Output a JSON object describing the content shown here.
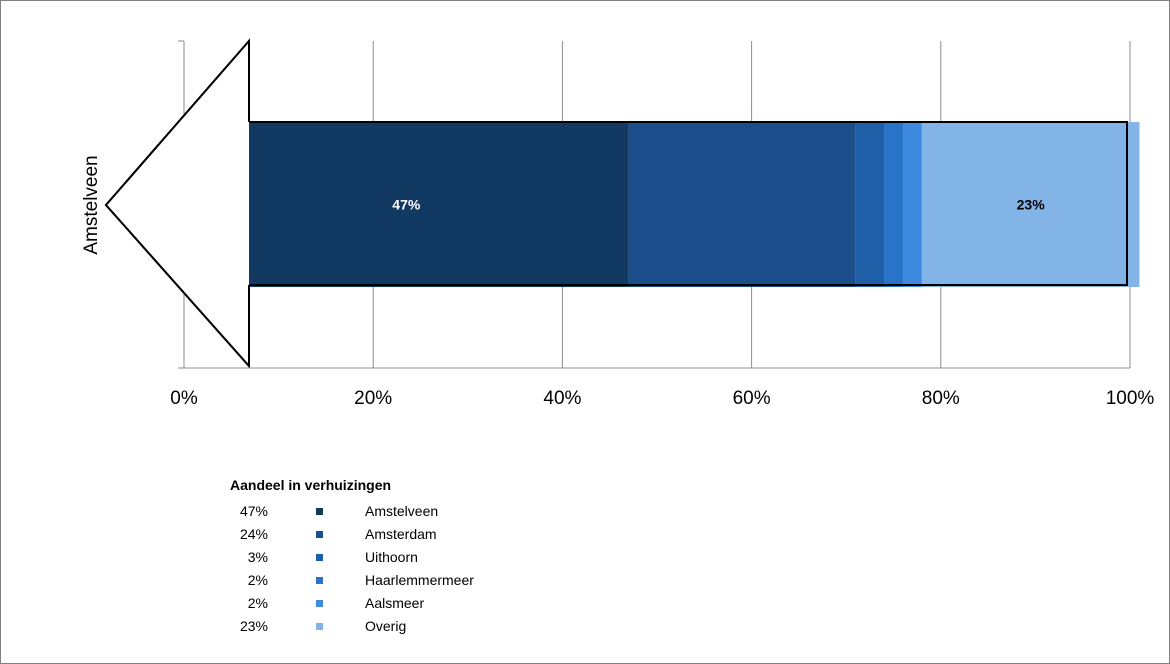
{
  "chart_data": {
    "type": "bar",
    "orientation": "horizontal",
    "stacked": "100%",
    "categories": [
      "Amstelveen"
    ],
    "series": [
      {
        "name": "Amstelveen",
        "values": [
          47
        ],
        "color": "#123962",
        "label": "47%"
      },
      {
        "name": "Amsterdam",
        "values": [
          24
        ],
        "color": "#1b4e8a",
        "label": ""
      },
      {
        "name": "Uithoorn",
        "values": [
          3
        ],
        "color": "#1f5fa8",
        "label": ""
      },
      {
        "name": "Haarlemmermeer",
        "values": [
          2
        ],
        "color": "#2874c9",
        "label": ""
      },
      {
        "name": "Aalsmeer",
        "values": [
          2
        ],
        "color": "#3d8ae0",
        "label": ""
      },
      {
        "name": "Overig",
        "values": [
          23
        ],
        "color": "#83b4e8",
        "label": "23%"
      }
    ],
    "x_ticks": [
      "0%",
      "20%",
      "40%",
      "60%",
      "80%",
      "100%"
    ],
    "xlim": [
      0,
      100
    ],
    "grid": true,
    "legend_position": "bottom",
    "legend_title": "Aandeel in verhuizingen",
    "legend_values": [
      "47%",
      "24%",
      "3%",
      "2%",
      "2%",
      "23%"
    ]
  }
}
